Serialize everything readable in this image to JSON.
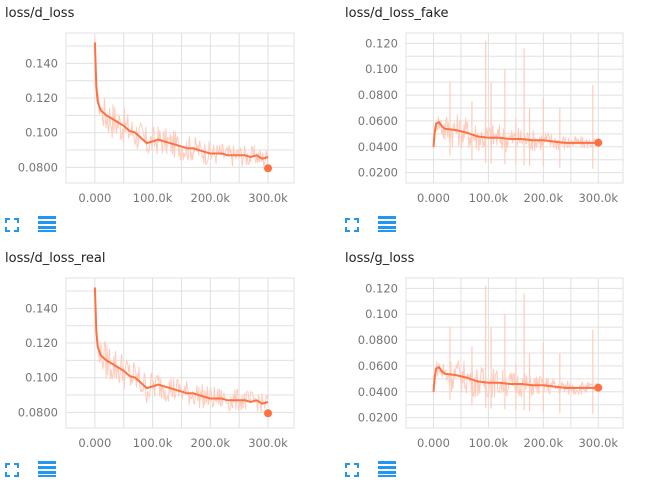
{
  "colors": {
    "line": "#ff7043",
    "raw": "#ffccbc",
    "grid": "#e0e0e0",
    "icon": "#2196f3",
    "tick": "#757575"
  },
  "icons": {
    "expand": "fit-to-screen-icon",
    "log": "data-table-icon"
  },
  "panels": [
    {
      "title": "loss/d_loss"
    },
    {
      "title": "loss/d_loss_fake"
    },
    {
      "title": "loss/d_loss_real"
    },
    {
      "title": "loss/g_loss"
    }
  ],
  "chart_data": [
    {
      "type": "line",
      "title": "loss/d_loss",
      "xlim": [
        -50000,
        345000
      ],
      "ylim": [
        0.071,
        0.1575
      ],
      "xticks": [
        0,
        100000,
        200000,
        300000
      ],
      "xtick_labels": [
        "0.000",
        "100.0k",
        "200.0k",
        "300.0k"
      ],
      "yticks": [
        0.08,
        0.1,
        0.12,
        0.14
      ],
      "ytick_labels": [
        "0.0800",
        "0.100",
        "0.120",
        "0.140"
      ],
      "grid": true,
      "series": [
        {
          "smoothed": [
            [
              0,
              0.152
            ],
            [
              2500,
              0.127
            ],
            [
              5000,
              0.118
            ],
            [
              10000,
              0.113
            ],
            [
              20000,
              0.11
            ],
            [
              30000,
              0.108
            ],
            [
              40000,
              0.106
            ],
            [
              50000,
              0.104
            ],
            [
              60000,
              0.101
            ],
            [
              70000,
              0.1
            ],
            [
              80000,
              0.097
            ],
            [
              90000,
              0.094
            ],
            [
              100000,
              0.095
            ],
            [
              110000,
              0.096
            ],
            [
              120000,
              0.095
            ],
            [
              130000,
              0.094
            ],
            [
              140000,
              0.093
            ],
            [
              150000,
              0.092
            ],
            [
              160000,
              0.091
            ],
            [
              170000,
              0.091
            ],
            [
              180000,
              0.09
            ],
            [
              190000,
              0.089
            ],
            [
              200000,
              0.088
            ],
            [
              210000,
              0.088
            ],
            [
              220000,
              0.088
            ],
            [
              230000,
              0.087
            ],
            [
              240000,
              0.087
            ],
            [
              250000,
              0.087
            ],
            [
              260000,
              0.087
            ],
            [
              270000,
              0.086
            ],
            [
              280000,
              0.087
            ],
            [
              290000,
              0.085
            ],
            [
              300000,
              0.086
            ]
          ],
          "raw_band_halfwidth": [
            [
              0,
              0.004
            ],
            [
              20000,
              0.012
            ],
            [
              100000,
              0.009
            ],
            [
              200000,
              0.007
            ],
            [
              300000,
              0.006
            ]
          ],
          "last": [
            300000,
            0.0795
          ]
        }
      ]
    },
    {
      "type": "line",
      "title": "loss/d_loss_fake",
      "xlim": [
        -50000,
        345000
      ],
      "ylim": [
        0.012,
        0.128
      ],
      "xticks": [
        0,
        100000,
        200000,
        300000
      ],
      "xtick_labels": [
        "0.000",
        "100.0k",
        "200.0k",
        "300.0k"
      ],
      "yticks": [
        0.02,
        0.04,
        0.06,
        0.08,
        0.1,
        0.12
      ],
      "ytick_labels": [
        "0.0200",
        "0.0400",
        "0.0600",
        "0.0800",
        "0.100",
        "0.120"
      ],
      "grid": true,
      "series": [
        {
          "smoothed": [
            [
              0,
              0.04
            ],
            [
              2500,
              0.052
            ],
            [
              5000,
              0.058
            ],
            [
              10000,
              0.059
            ],
            [
              15000,
              0.056
            ],
            [
              20000,
              0.054
            ],
            [
              40000,
              0.053
            ],
            [
              60000,
              0.051
            ],
            [
              80000,
              0.048
            ],
            [
              100000,
              0.047
            ],
            [
              120000,
              0.047
            ],
            [
              140000,
              0.046
            ],
            [
              160000,
              0.046
            ],
            [
              180000,
              0.045
            ],
            [
              200000,
              0.045
            ],
            [
              220000,
              0.044
            ],
            [
              240000,
              0.043
            ],
            [
              260000,
              0.043
            ],
            [
              280000,
              0.043
            ],
            [
              300000,
              0.043
            ]
          ],
          "raw_band_halfwidth": [
            [
              0,
              0.003
            ],
            [
              20000,
              0.014
            ],
            [
              100000,
              0.012
            ],
            [
              200000,
              0.008
            ],
            [
              300000,
              0.004
            ]
          ],
          "spikes": [
            [
              30000,
              0.09
            ],
            [
              70000,
              0.075
            ],
            [
              95000,
              0.122
            ],
            [
              105000,
              0.09
            ],
            [
              130000,
              0.1
            ],
            [
              150000,
              0.062
            ],
            [
              165000,
              0.116
            ],
            [
              175000,
              0.07
            ],
            [
              200000,
              0.078
            ],
            [
              230000,
              0.07
            ],
            [
              290000,
              0.088
            ]
          ],
          "last": [
            300000,
            0.0432
          ]
        }
      ]
    },
    {
      "type": "line",
      "title": "loss/d_loss_real",
      "xlim": [
        -50000,
        345000
      ],
      "ylim": [
        0.071,
        0.1575
      ],
      "xticks": [
        0,
        100000,
        200000,
        300000
      ],
      "xtick_labels": [
        "0.000",
        "100.0k",
        "200.0k",
        "300.0k"
      ],
      "yticks": [
        0.08,
        0.1,
        0.12,
        0.14
      ],
      "ytick_labels": [
        "0.0800",
        "0.100",
        "0.120",
        "0.140"
      ],
      "grid": true,
      "series": [
        {
          "smoothed": [
            [
              0,
              0.152
            ],
            [
              2500,
              0.127
            ],
            [
              5000,
              0.118
            ],
            [
              10000,
              0.113
            ],
            [
              20000,
              0.11
            ],
            [
              30000,
              0.108
            ],
            [
              40000,
              0.106
            ],
            [
              50000,
              0.104
            ],
            [
              60000,
              0.101
            ],
            [
              70000,
              0.1
            ],
            [
              80000,
              0.097
            ],
            [
              90000,
              0.094
            ],
            [
              100000,
              0.095
            ],
            [
              110000,
              0.096
            ],
            [
              120000,
              0.095
            ],
            [
              130000,
              0.094
            ],
            [
              140000,
              0.093
            ],
            [
              150000,
              0.092
            ],
            [
              160000,
              0.091
            ],
            [
              170000,
              0.091
            ],
            [
              180000,
              0.09
            ],
            [
              190000,
              0.089
            ],
            [
              200000,
              0.088
            ],
            [
              210000,
              0.088
            ],
            [
              220000,
              0.088
            ],
            [
              230000,
              0.087
            ],
            [
              240000,
              0.087
            ],
            [
              250000,
              0.087
            ],
            [
              260000,
              0.087
            ],
            [
              270000,
              0.086
            ],
            [
              280000,
              0.087
            ],
            [
              290000,
              0.085
            ],
            [
              300000,
              0.086
            ]
          ],
          "raw_band_halfwidth": [
            [
              0,
              0.004
            ],
            [
              20000,
              0.012
            ],
            [
              100000,
              0.009
            ],
            [
              200000,
              0.007
            ],
            [
              300000,
              0.006
            ]
          ],
          "last": [
            300000,
            0.0795
          ]
        }
      ]
    },
    {
      "type": "line",
      "title": "loss/g_loss",
      "xlim": [
        -50000,
        345000
      ],
      "ylim": [
        0.012,
        0.128
      ],
      "xticks": [
        0,
        100000,
        200000,
        300000
      ],
      "xtick_labels": [
        "0.000",
        "100.0k",
        "200.0k",
        "300.0k"
      ],
      "yticks": [
        0.02,
        0.04,
        0.06,
        0.08,
        0.1,
        0.12
      ],
      "ytick_labels": [
        "0.0200",
        "0.0400",
        "0.0600",
        "0.0800",
        "0.100",
        "0.120"
      ],
      "grid": true,
      "series": [
        {
          "smoothed": [
            [
              0,
              0.04
            ],
            [
              2500,
              0.052
            ],
            [
              5000,
              0.058
            ],
            [
              10000,
              0.059
            ],
            [
              15000,
              0.056
            ],
            [
              20000,
              0.054
            ],
            [
              40000,
              0.053
            ],
            [
              60000,
              0.051
            ],
            [
              80000,
              0.048
            ],
            [
              100000,
              0.047
            ],
            [
              120000,
              0.047
            ],
            [
              140000,
              0.046
            ],
            [
              160000,
              0.046
            ],
            [
              180000,
              0.045
            ],
            [
              200000,
              0.045
            ],
            [
              220000,
              0.044
            ],
            [
              240000,
              0.043
            ],
            [
              260000,
              0.043
            ],
            [
              280000,
              0.043
            ],
            [
              300000,
              0.043
            ]
          ],
          "raw_band_halfwidth": [
            [
              0,
              0.003
            ],
            [
              20000,
              0.014
            ],
            [
              100000,
              0.012
            ],
            [
              200000,
              0.008
            ],
            [
              300000,
              0.004
            ]
          ],
          "spikes": [
            [
              30000,
              0.09
            ],
            [
              70000,
              0.075
            ],
            [
              95000,
              0.122
            ],
            [
              105000,
              0.09
            ],
            [
              130000,
              0.1
            ],
            [
              150000,
              0.062
            ],
            [
              165000,
              0.116
            ],
            [
              175000,
              0.07
            ],
            [
              200000,
              0.078
            ],
            [
              230000,
              0.07
            ],
            [
              290000,
              0.088
            ]
          ],
          "last": [
            300000,
            0.0432
          ]
        }
      ]
    }
  ]
}
